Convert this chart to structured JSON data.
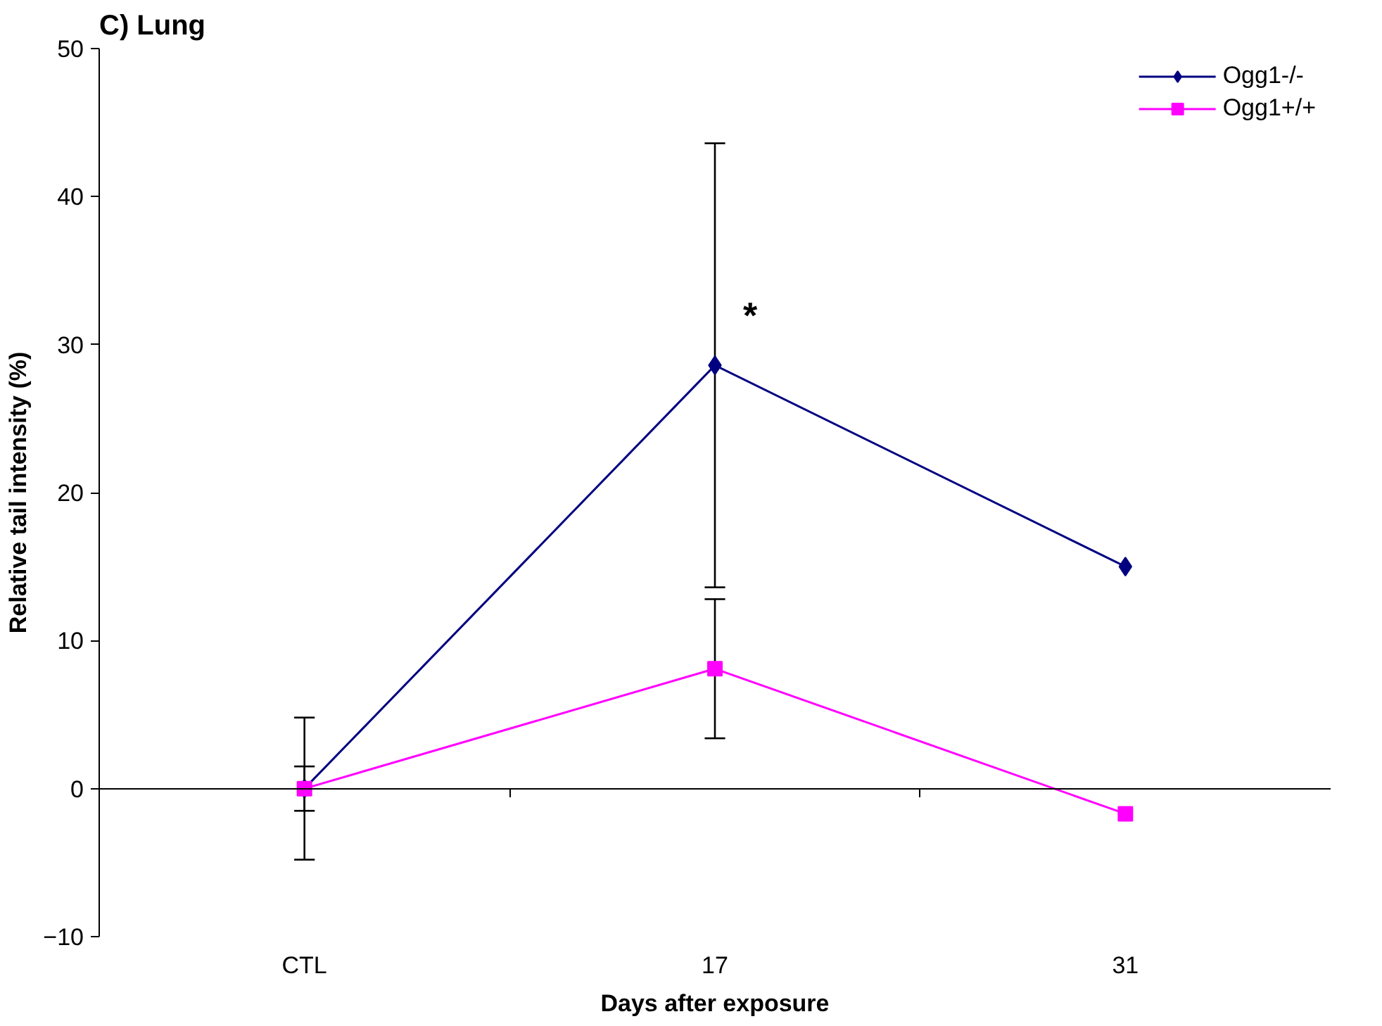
{
  "chart_data": {
    "type": "line",
    "title": "C) Lung",
    "xlabel": "Days after exposure",
    "ylabel": "Relative tail intensity (%)",
    "categories": [
      "CTL",
      "17",
      "31"
    ],
    "series": [
      {
        "name": "Ogg1-/-",
        "color": "#000080",
        "values": [
          0,
          28.6,
          15.0
        ],
        "errors": [
          4.8,
          15.0,
          null
        ],
        "marker": "diamond"
      },
      {
        "name": "Ogg1+/+",
        "color": "#ff00ff",
        "values": [
          0,
          8.1,
          -1.7
        ],
        "errors": [
          1.5,
          4.7,
          null
        ],
        "marker": "square"
      }
    ],
    "ylim": [
      -10,
      50
    ],
    "yticks": [
      -10,
      0,
      10,
      20,
      30,
      40,
      50
    ],
    "legend": "top right",
    "annotations": [
      {
        "text": "*",
        "x": "17",
        "y": 32
      }
    ]
  }
}
